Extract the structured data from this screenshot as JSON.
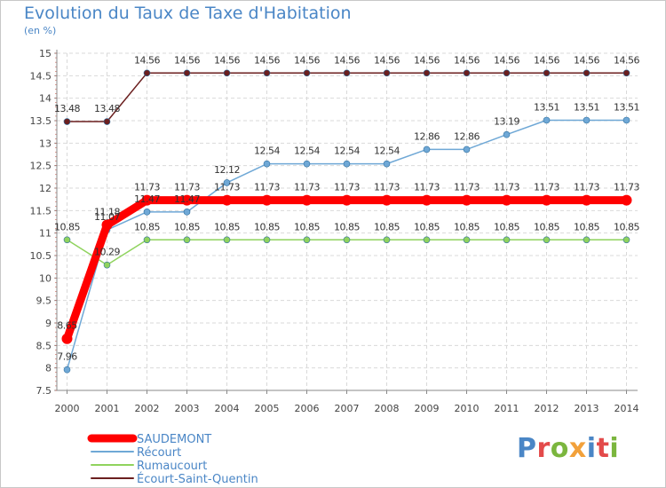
{
  "title": "Evolution du Taux de Taxe d'Habitation",
  "subtitle": "(en %)",
  "logo": {
    "text": "Proxiti",
    "colors": [
      "#4a86c6",
      "#e34a4a",
      "#7bb63e",
      "#f2a13b",
      "#4a86c6",
      "#e34a4a",
      "#7bb63e"
    ]
  },
  "chart_data": {
    "type": "line",
    "x": [
      "2000",
      "2001",
      "2002",
      "2003",
      "2004",
      "2005",
      "2006",
      "2007",
      "2008",
      "2009",
      "2010",
      "2011",
      "2012",
      "2013",
      "2014"
    ],
    "ylim": [
      7.5,
      15
    ],
    "yticks": [
      "7.5",
      "8",
      "8.5",
      "9",
      "9.5",
      "10",
      "10.5",
      "11",
      "11.5",
      "12",
      "12.5",
      "13",
      "13.5",
      "14",
      "14.5",
      "15"
    ],
    "grid": true,
    "legend_position": "bottom-left",
    "series": [
      {
        "name": "Écourt-Saint-Quentin",
        "color": "#6b1f1f",
        "width": 1.5,
        "values": [
          13.48,
          13.48,
          14.56,
          14.56,
          14.56,
          14.56,
          14.56,
          14.56,
          14.56,
          14.56,
          14.56,
          14.56,
          14.56,
          14.56,
          14.56
        ],
        "labels": [
          "13.48",
          "13.48",
          "14.56",
          "14.56",
          "14.56",
          "14.56",
          "14.56",
          "14.56",
          "14.56",
          "14.56",
          "14.56",
          "14.56",
          "14.56",
          "14.56",
          "14.56"
        ]
      },
      {
        "name": "Récourt",
        "color": "#6fa8d6",
        "width": 1.5,
        "values": [
          7.96,
          11.07,
          11.47,
          11.47,
          12.12,
          12.54,
          12.54,
          12.54,
          12.54,
          12.86,
          12.86,
          13.19,
          13.51,
          13.51,
          13.51
        ],
        "labels": [
          "7.96",
          "11.07",
          "11.47",
          "11.47",
          "12.12",
          "12.54",
          "12.54",
          "12.54",
          "12.54",
          "12.86",
          "12.86",
          "13.19",
          "13.51",
          "13.51",
          "13.51"
        ]
      },
      {
        "name": "Rumaucourt",
        "color": "#8fd35d",
        "width": 1.5,
        "values": [
          10.85,
          10.29,
          10.85,
          10.85,
          10.85,
          10.85,
          10.85,
          10.85,
          10.85,
          10.85,
          10.85,
          10.85,
          10.85,
          10.85,
          10.85
        ],
        "labels": [
          "10.85",
          "10.29",
          "10.85",
          "10.85",
          "10.85",
          "10.85",
          "10.85",
          "10.85",
          "10.85",
          "10.85",
          "10.85",
          "10.85",
          "10.85",
          "10.85",
          "10.85"
        ]
      },
      {
        "name": "SAUDEMONT",
        "color": "#ff0000",
        "width": 9,
        "values": [
          8.65,
          11.18,
          11.73,
          11.73,
          11.73,
          11.73,
          11.73,
          11.73,
          11.73,
          11.73,
          11.73,
          11.73,
          11.73,
          11.73,
          11.73
        ],
        "labels": [
          "8.65",
          "11.18",
          "11.73",
          "11.73",
          "11.73",
          "11.73",
          "11.73",
          "11.73",
          "11.73",
          "11.73",
          "11.73",
          "11.73",
          "11.73",
          "11.73",
          "11.73"
        ]
      }
    ],
    "legend": [
      {
        "name": "SAUDEMONT",
        "color": "#ff0000",
        "text_color": "#4a86c6",
        "width": 9
      },
      {
        "name": "Récourt",
        "color": "#6fa8d6",
        "text_color": "#4a86c6",
        "width": 2
      },
      {
        "name": "Rumaucourt",
        "color": "#8fd35d",
        "text_color": "#4a86c6",
        "width": 2
      },
      {
        "name": "Écourt-Saint-Quentin",
        "color": "#6b1f1f",
        "text_color": "#4a86c6",
        "width": 2
      }
    ]
  }
}
